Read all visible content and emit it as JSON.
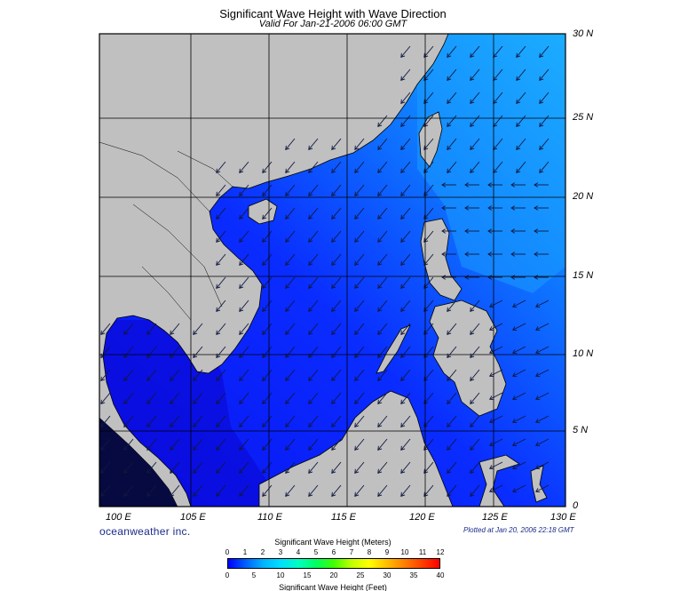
{
  "title": "Significant Wave Height with Wave Direction",
  "subtitle": "Valid For Jan-21-2006 06:00 GMT",
  "map": {
    "lat_labels": [
      "30 N",
      "25 N",
      "20 N",
      "15 N",
      "10 N",
      "5 N",
      "0"
    ],
    "lon_labels": [
      "100 E",
      "105 E",
      "110 E",
      "115 E",
      "120 E",
      "125 E",
      "130 E"
    ],
    "land_color": "#c0c0c0",
    "frame_color": "#000000",
    "ocean_low_color": "#0a1cff",
    "ocean_high_color": "#1fb4ff",
    "arrow_color": "#101840"
  },
  "brand": "oceanweather inc.",
  "plotted_text": "Plotted at Jan 20, 2006 22:18 GMT",
  "legend": {
    "meters_title": "Significant Wave Height (Meters)",
    "meters_ticks": [
      "0",
      "1",
      "2",
      "3",
      "4",
      "5",
      "6",
      "7",
      "8",
      "9",
      "10",
      "11",
      "12"
    ],
    "feet_title": "Significant Wave Height (Feet)",
    "feet_ticks": [
      "0",
      "5",
      "10",
      "15",
      "20",
      "25",
      "30",
      "35",
      "40"
    ],
    "colors": [
      "#0000ff",
      "#0060ff",
      "#00b4ff",
      "#00e0ff",
      "#00ffc0",
      "#00ff60",
      "#40ff00",
      "#c0ff00",
      "#ffff00",
      "#ffc000",
      "#ff8000",
      "#ff4000",
      "#ff0000"
    ]
  }
}
